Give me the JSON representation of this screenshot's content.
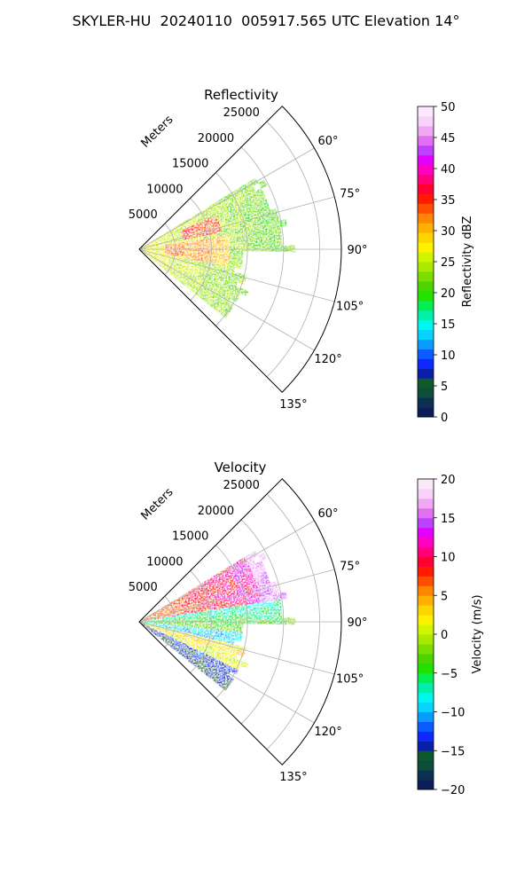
{
  "figure": {
    "title": "SKYLER-HU  20240110  005917.565 UTC Elevation 14°"
  },
  "chart_data": [
    {
      "type": "heatmap",
      "projection": "polar-sector",
      "title": "Reflectivity",
      "radial_label": "Meters",
      "radial_ticks": [
        5000,
        10000,
        15000,
        20000,
        25000
      ],
      "radial_tick_labels": [
        "5000",
        "10000",
        "15000",
        "20000",
        "25000"
      ],
      "rmax": 28000,
      "theta_range_deg": [
        45,
        135
      ],
      "theta_ticks_deg": [
        60,
        75,
        90,
        105,
        120,
        135
      ],
      "theta_tick_labels": [
        "60°",
        "75°",
        "90°",
        "105°",
        "120°",
        "135°"
      ],
      "grid": true,
      "colorbar": {
        "label": "Reflectivity dBZ",
        "range": [
          0,
          50
        ],
        "ticks": [
          0,
          5,
          10,
          15,
          20,
          25,
          30,
          35,
          40,
          45,
          50
        ],
        "tick_labels": [
          "0",
          "5",
          "10",
          "15",
          "20",
          "25",
          "30",
          "35",
          "40",
          "45",
          "50"
        ],
        "colors": [
          "#0b1e5a",
          "#0d3050",
          "#0e4c3c",
          "#0f5a2c",
          "#0a1fa8",
          "#0f28ff",
          "#0a5cff",
          "#089cff",
          "#06d4ff",
          "#00f7ee",
          "#00f0aa",
          "#04ee50",
          "#22e000",
          "#4dd400",
          "#7cdd00",
          "#a9ea00",
          "#d0f500",
          "#fff200",
          "#ffd500",
          "#ffb000",
          "#ff8600",
          "#ff4e00",
          "#ff1a00",
          "#ff0030",
          "#ff0078",
          "#ff00c0",
          "#e400ff",
          "#c040ff",
          "#e070f0",
          "#f0a8f4",
          "#f8d2f8",
          "#fce8fc"
        ]
      },
      "field_description_values_dbz": {
        "near_range": 26,
        "core_max": 40,
        "outer_edge": 18
      }
    },
    {
      "type": "heatmap",
      "projection": "polar-sector",
      "title": "Velocity",
      "radial_label": "Meters",
      "radial_ticks": [
        5000,
        10000,
        15000,
        20000,
        25000
      ],
      "radial_tick_labels": [
        "5000",
        "10000",
        "15000",
        "20000",
        "25000"
      ],
      "rmax": 28000,
      "theta_range_deg": [
        45,
        135
      ],
      "theta_ticks_deg": [
        60,
        75,
        90,
        105,
        120,
        135
      ],
      "theta_tick_labels": [
        "60°",
        "75°",
        "90°",
        "105°",
        "120°",
        "135°"
      ],
      "grid": true,
      "colorbar": {
        "label": "Velocity (m/s)",
        "range": [
          -20,
          20
        ],
        "ticks": [
          -20,
          -15,
          -10,
          -5,
          0,
          5,
          10,
          15,
          20
        ],
        "tick_labels": [
          "−20",
          "−15",
          "−10",
          "−5",
          "0",
          "5",
          "10",
          "15",
          "20"
        ],
        "colors": [
          "#0b1e5a",
          "#0d3050",
          "#0e4c3c",
          "#0f5a2c",
          "#0a1fa8",
          "#0f28ff",
          "#0a5cff",
          "#089cff",
          "#06d4ff",
          "#00f7ee",
          "#00f0aa",
          "#04ee50",
          "#22e000",
          "#4dd400",
          "#7cdd00",
          "#a9ea00",
          "#d0f500",
          "#fff200",
          "#ffd500",
          "#ffb000",
          "#ff8600",
          "#ff4e00",
          "#ff1a00",
          "#ff0030",
          "#ff0078",
          "#ff00c0",
          "#e400ff",
          "#c040ff",
          "#e070f0",
          "#f0a8f4",
          "#f8d2f8",
          "#fce8fc"
        ]
      },
      "field_description_values_ms": {
        "upper_sector": 10,
        "upper_edge": 15,
        "center_band": -5,
        "lower_sector": 2,
        "lower_edge": -12
      }
    }
  ]
}
